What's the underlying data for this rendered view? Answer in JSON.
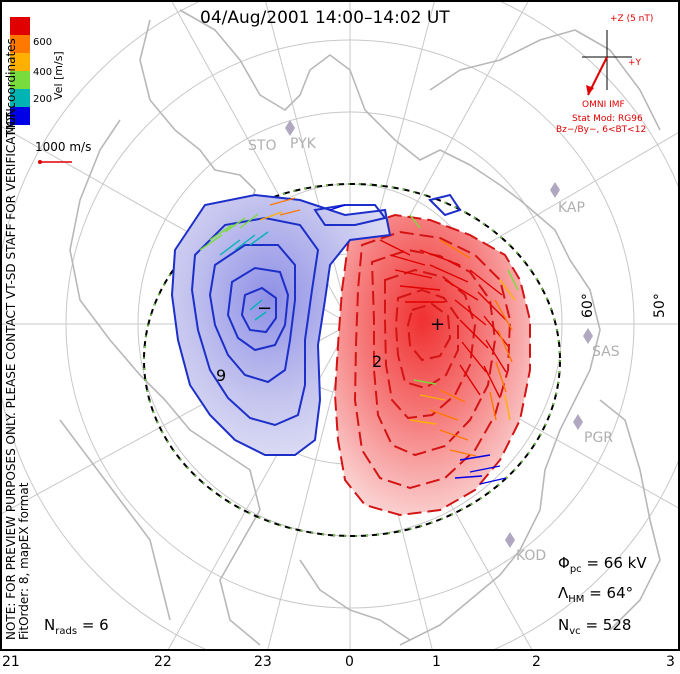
{
  "title": "04/Aug/2001 14:00–14:02 UT",
  "colors": {
    "frame": "#000000",
    "grid": "#c8c8c8",
    "coast": "#b4b4b4",
    "neg": "#1c2fc9",
    "pos": "#e01010"
  },
  "colorbar": {
    "label": "Vel [m/s]",
    "ticks": [
      "600",
      "400",
      "200"
    ],
    "colors": [
      "#e00000",
      "#ff7800",
      "#ffb000",
      "#7adc3c",
      "#00b4b4",
      "#0000e6"
    ]
  },
  "mlt_coordinates": "MLT coordinates",
  "note": "NOTE: FOR PREVIEW PURPOSES ONLY. PLEASE CONTACT VT-SD STAFF FOR VERIFICATION.",
  "fit_order": "FitOrder: 8, mapEX format",
  "scale_vector": "1000 m/s",
  "imf": {
    "bz_label": "+Z (5 nT)",
    "by_label": "+Y",
    "source": "OMNI IMF"
  },
  "model": {
    "line1": "Stat Mod: RG96",
    "line2": "Bz−/By−, 6<BT<12"
  },
  "stations": [
    "STO",
    "PYK",
    "KAP",
    "SAS",
    "PGR",
    "KOD"
  ],
  "contour_labels": [
    "9",
    "2"
  ],
  "stats": {
    "phi_pc": "= 66 kV",
    "lambda_hm": "= 64°",
    "n_vc": "= 528",
    "n_rads": "= 6"
  },
  "latitude_labels": [
    "60°",
    "50°"
  ],
  "mlt_labels": [
    "21",
    "22",
    "23",
    "0",
    "1",
    "2",
    "3"
  ]
}
